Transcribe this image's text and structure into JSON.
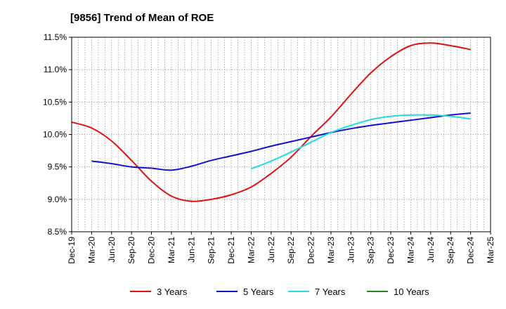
{
  "chart_data": {
    "type": "line",
    "title": "[9856]  Trend of Mean of ROE",
    "xlabel": "",
    "ylabel": "",
    "x_ticks": [
      "Dec-19",
      "Mar-20",
      "Jun-20",
      "Sep-20",
      "Dec-20",
      "Mar-21",
      "Jun-21",
      "Sep-21",
      "Dec-21",
      "Mar-22",
      "Jun-22",
      "Sep-22",
      "Dec-22",
      "Mar-23",
      "Jun-23",
      "Sep-23",
      "Dec-23",
      "Mar-24",
      "Jun-24",
      "Sep-24",
      "Dec-24",
      "Mar-25"
    ],
    "y_ticks": [
      "8.5%",
      "9.0%",
      "9.5%",
      "10.0%",
      "10.5%",
      "11.0%",
      "11.5%"
    ],
    "ylim": [
      8.5,
      11.5
    ],
    "grid": true,
    "legend_position": "bottom",
    "series": [
      {
        "name": "3 Years",
        "color": "#dd1111",
        "x": [
          "Dec-19",
          "Mar-20",
          "Jun-20",
          "Sep-20",
          "Dec-20",
          "Mar-21",
          "Jun-21",
          "Sep-21",
          "Dec-21",
          "Mar-22",
          "Jun-22",
          "Sep-22",
          "Dec-22",
          "Mar-23",
          "Jun-23",
          "Sep-23",
          "Dec-23",
          "Mar-24",
          "Jun-24",
          "Sep-24",
          "Dec-24"
        ],
        "values": [
          10.19,
          10.1,
          9.9,
          9.6,
          9.28,
          9.05,
          8.97,
          9.0,
          9.07,
          9.19,
          9.4,
          9.65,
          9.97,
          10.27,
          10.62,
          10.95,
          11.2,
          11.37,
          11.41,
          11.37,
          11.31
        ]
      },
      {
        "name": "5 Years",
        "color": "#1111cc",
        "x": [
          "Mar-20",
          "Jun-20",
          "Sep-20",
          "Dec-20",
          "Mar-21",
          "Jun-21",
          "Sep-21",
          "Dec-21",
          "Mar-22",
          "Jun-22",
          "Sep-22",
          "Dec-22",
          "Mar-23",
          "Jun-23",
          "Sep-23",
          "Dec-23",
          "Mar-24",
          "Jun-24",
          "Sep-24",
          "Dec-24"
        ],
        "values": [
          9.59,
          9.55,
          9.5,
          9.48,
          9.45,
          9.51,
          9.6,
          9.67,
          9.74,
          9.82,
          9.89,
          9.96,
          10.03,
          10.09,
          10.14,
          10.18,
          10.22,
          10.26,
          10.3,
          10.33
        ]
      },
      {
        "name": "7 Years",
        "color": "#22dddd",
        "x": [
          "Mar-22",
          "Jun-22",
          "Sep-22",
          "Dec-22",
          "Mar-23",
          "Jun-23",
          "Sep-23",
          "Dec-23",
          "Mar-24",
          "Jun-24",
          "Sep-24",
          "Dec-24"
        ],
        "values": [
          9.47,
          9.59,
          9.73,
          9.88,
          10.03,
          10.14,
          10.23,
          10.28,
          10.3,
          10.3,
          10.28,
          10.24
        ]
      },
      {
        "name": "10 Years",
        "color": "#228822",
        "x": [],
        "values": []
      }
    ]
  }
}
